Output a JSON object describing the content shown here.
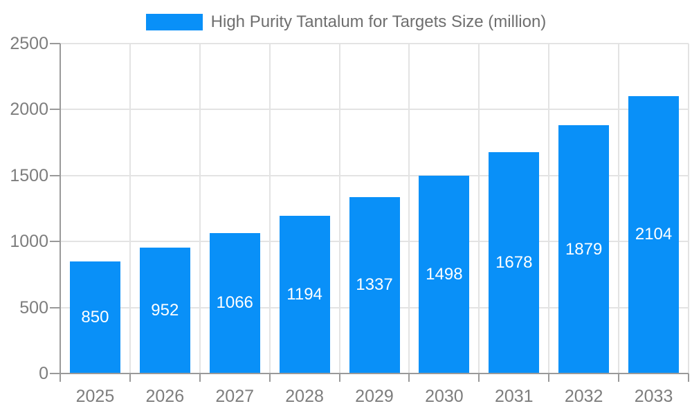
{
  "chart_data": {
    "type": "bar",
    "title": "High Purity Tantalum for Targets Size (million)",
    "legend": {
      "position": "top",
      "entries": [
        "High Purity Tantalum for Targets Size (million)"
      ]
    },
    "categories": [
      "2025",
      "2026",
      "2027",
      "2028",
      "2029",
      "2030",
      "2031",
      "2032",
      "2033"
    ],
    "values": [
      850,
      952,
      1066,
      1194,
      1337,
      1498,
      1678,
      1879,
      2104
    ],
    "value_labels": [
      "850",
      "952",
      "1066",
      "1194",
      "1337",
      "1498",
      "1678",
      "1879",
      "2104"
    ],
    "value_label_position": "inside-center",
    "xlabel": "",
    "ylabel": "",
    "ylim": [
      0,
      2500
    ],
    "yticks": [
      0,
      500,
      1000,
      1500,
      2000,
      2500
    ],
    "ytick_labels": [
      "0",
      "500",
      "1000",
      "1500",
      "2000",
      "2500"
    ],
    "grid": true,
    "colors": {
      "bar": "#0990f8",
      "grid": "#e3e3e3",
      "axis": "#999999",
      "tick_label": "#7d7d7d",
      "legend_text": "#6e6e6e",
      "value_label": "#ffffff",
      "background": "#ffffff"
    }
  }
}
